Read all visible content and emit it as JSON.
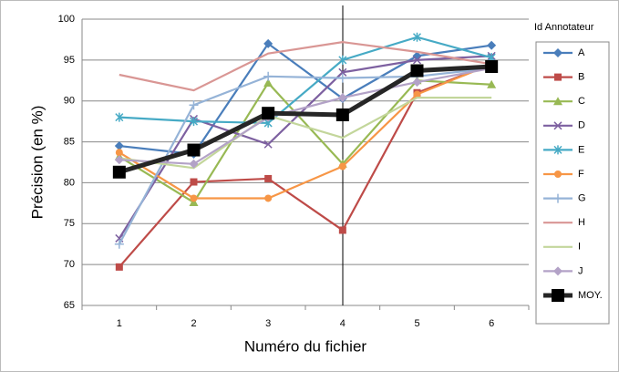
{
  "chart_data": {
    "type": "line",
    "categories": [
      "1",
      "2",
      "3",
      "4",
      "5",
      "6"
    ],
    "y_label": "Précision (en %)",
    "x_label": "Numéro du fichier",
    "legend_title": "Id Annotateur",
    "ylim": [
      65,
      100
    ],
    "yticks": [
      65,
      70,
      75,
      80,
      85,
      90,
      95,
      100
    ],
    "grid": true,
    "legend": "right",
    "series": [
      {
        "name": "A",
        "color": "#4a7ebb",
        "marker": "diamond",
        "values": [
          84.5,
          83.5,
          97,
          90.3,
          95.5,
          96.8
        ]
      },
      {
        "name": "B",
        "color": "#be4b48",
        "marker": "square",
        "values": [
          69.7,
          80.1,
          80.5,
          74.2,
          91,
          94.5
        ]
      },
      {
        "name": "C",
        "color": "#98b954",
        "marker": "triangle",
        "values": [
          83.2,
          77.6,
          92.2,
          82.3,
          92.5,
          92
        ]
      },
      {
        "name": "D",
        "color": "#7d60a0",
        "marker": "x",
        "values": [
          73.2,
          87.8,
          84.7,
          93.5,
          95,
          95.5
        ]
      },
      {
        "name": "E",
        "color": "#46aac5",
        "marker": "star",
        "values": [
          88,
          87.5,
          87.3,
          95,
          97.8,
          95.3
        ]
      },
      {
        "name": "F",
        "color": "#f79646",
        "marker": "circle",
        "values": [
          83.7,
          78.1,
          78.1,
          82,
          90.8,
          94.5
        ]
      },
      {
        "name": "G",
        "color": "#95b3d7",
        "marker": "plus",
        "values": [
          72.5,
          89.5,
          93,
          92.8,
          93,
          94
        ]
      },
      {
        "name": "H",
        "color": "#d99694",
        "marker": "none",
        "values": [
          93.2,
          91.3,
          95.8,
          97.2,
          96,
          94.5
        ]
      },
      {
        "name": "I",
        "color": "#c3d69b",
        "marker": "none",
        "values": [
          83,
          81.8,
          88.2,
          85.5,
          90.4,
          90.4
        ]
      },
      {
        "name": "J",
        "color": "#b3a2c7",
        "marker": "diamond",
        "values": [
          82.8,
          82.3,
          88,
          90.4,
          92.3,
          94
        ]
      },
      {
        "name": "MOY.",
        "color": "#262626",
        "marker": "bigsquare",
        "width": 5,
        "values": [
          81.3,
          84,
          88.5,
          88.3,
          93.7,
          94.2
        ]
      }
    ]
  }
}
